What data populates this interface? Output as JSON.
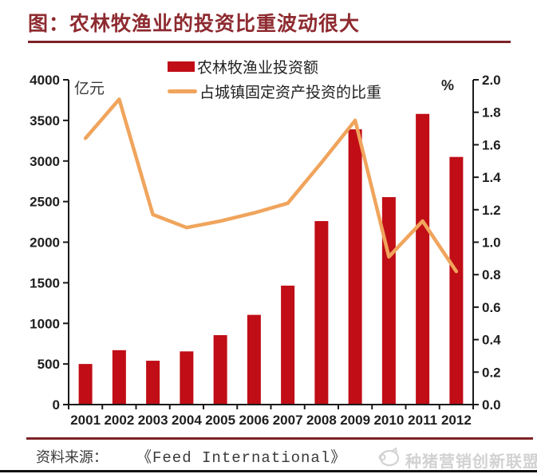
{
  "title": "图：农林牧渔业的投资比重波动很大",
  "legend": {
    "bar_label": "农林牧渔业投资额",
    "line_label": "占城镇固定资产投资的比重"
  },
  "axis_units": {
    "left": "亿元",
    "right": "%"
  },
  "source": {
    "label": "资料来源：",
    "value": "《Feed International》"
  },
  "watermark": {
    "icon": "pig-logo-icon",
    "text": "种猪营销创新联盟"
  },
  "colors": {
    "bar": "#C00D16",
    "line": "#F0A45C",
    "title": "#8E2B30",
    "rule": "#7C2328",
    "axis": "#1a1a1a",
    "tick_label": "#1f1f1f",
    "watermark": "#d2d2d2"
  },
  "chart_data": {
    "type": "bar",
    "subtype": "bar+line combo, dual axis",
    "categories": [
      "2001",
      "2002",
      "2003",
      "2004",
      "2005",
      "2006",
      "2007",
      "2008",
      "2009",
      "2010",
      "2011",
      "2012"
    ],
    "series": [
      {
        "name": "农林牧渔业投资额",
        "type": "bar",
        "axis": "left",
        "unit": "亿元",
        "values": [
          500,
          670,
          540,
          655,
          855,
          1105,
          1465,
          2260,
          3390,
          2555,
          3580,
          3050
        ]
      },
      {
        "name": "占城镇固定资产投资的比重",
        "type": "line",
        "axis": "right",
        "unit": "%",
        "values": [
          1.64,
          1.88,
          1.17,
          1.09,
          1.13,
          1.18,
          1.24,
          1.49,
          1.75,
          0.91,
          1.13,
          0.82
        ]
      }
    ],
    "left_axis": {
      "label": "亿元",
      "min": 0,
      "max": 4000,
      "step": 500
    },
    "right_axis": {
      "label": "%",
      "min": 0.0,
      "max": 2.0,
      "step": 0.2
    },
    "grid": false,
    "legend_position": "top-center"
  }
}
